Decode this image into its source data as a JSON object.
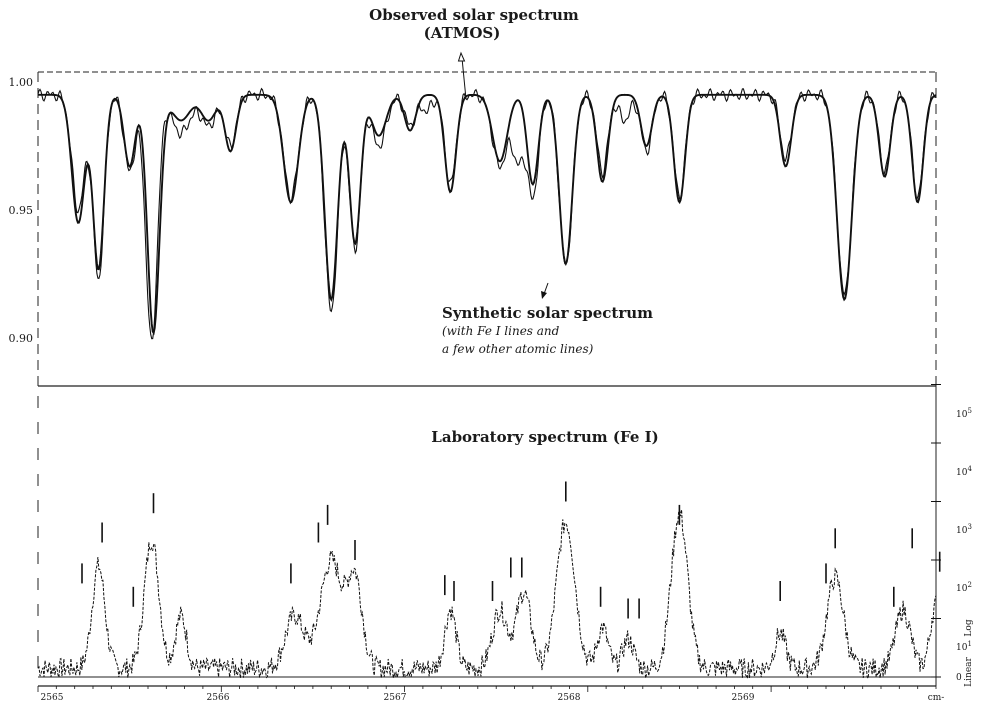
{
  "chart_data": [
    {
      "type": "line",
      "title": "",
      "xlabel": "",
      "ylabel": "",
      "xlim": [
        2565.0,
        2569.9
      ],
      "ylim": [
        0.88,
        1.005
      ],
      "y_ticks": [
        "1.00",
        "0.95",
        "0.90"
      ],
      "grid": false,
      "annotations": {
        "observed_title": "Observed solar spectrum",
        "observed_sub": "(ATMOS)",
        "synthetic_title": "Synthetic solar spectrum",
        "synthetic_line1": "(with Fe I lines and",
        "synthetic_line2": "a few other atomic lines)"
      },
      "continuum": 0.995,
      "series": [
        {
          "key": "observed",
          "lines": [
            {
              "x": 2565.22,
              "depth": 0.045,
              "width": 0.035
            },
            {
              "x": 2565.33,
              "depth": 0.072,
              "width": 0.03
            },
            {
              "x": 2565.5,
              "depth": 0.03,
              "width": 0.03
            },
            {
              "x": 2565.62,
              "depth": 0.097,
              "width": 0.032
            },
            {
              "x": 2565.78,
              "depth": 0.015,
              "width": 0.05
            },
            {
              "x": 2565.93,
              "depth": 0.012,
              "width": 0.04
            },
            {
              "x": 2566.05,
              "depth": 0.02,
              "width": 0.03
            },
            {
              "x": 2566.38,
              "depth": 0.04,
              "width": 0.04
            },
            {
              "x": 2566.6,
              "depth": 0.085,
              "width": 0.035
            },
            {
              "x": 2566.73,
              "depth": 0.06,
              "width": 0.03
            },
            {
              "x": 2566.86,
              "depth": 0.02,
              "width": 0.04
            },
            {
              "x": 2567.03,
              "depth": 0.012,
              "width": 0.03
            },
            {
              "x": 2567.12,
              "depth": 0.006,
              "width": 0.03
            },
            {
              "x": 2567.25,
              "depth": 0.035,
              "width": 0.03
            },
            {
              "x": 2567.52,
              "depth": 0.028,
              "width": 0.04
            },
            {
              "x": 2567.62,
              "depth": 0.025,
              "width": 0.03
            },
            {
              "x": 2567.7,
              "depth": 0.04,
              "width": 0.03
            },
            {
              "x": 2567.88,
              "depth": 0.067,
              "width": 0.035
            },
            {
              "x": 2568.08,
              "depth": 0.03,
              "width": 0.03
            },
            {
              "x": 2568.2,
              "depth": 0.01,
              "width": 0.03
            },
            {
              "x": 2568.32,
              "depth": 0.022,
              "width": 0.03
            },
            {
              "x": 2568.5,
              "depth": 0.04,
              "width": 0.03
            },
            {
              "x": 2569.08,
              "depth": 0.025,
              "width": 0.03
            },
            {
              "x": 2569.4,
              "depth": 0.078,
              "width": 0.04
            },
            {
              "x": 2569.62,
              "depth": 0.03,
              "width": 0.03
            },
            {
              "x": 2569.8,
              "depth": 0.04,
              "width": 0.03
            }
          ]
        },
        {
          "key": "synthetic",
          "lines": [
            {
              "x": 2565.22,
              "depth": 0.05,
              "width": 0.035
            },
            {
              "x": 2565.33,
              "depth": 0.068,
              "width": 0.03
            },
            {
              "x": 2565.5,
              "depth": 0.028,
              "width": 0.03
            },
            {
              "x": 2565.63,
              "depth": 0.093,
              "width": 0.033
            },
            {
              "x": 2565.78,
              "depth": 0.01,
              "width": 0.05
            },
            {
              "x": 2565.93,
              "depth": 0.01,
              "width": 0.04
            },
            {
              "x": 2566.05,
              "depth": 0.022,
              "width": 0.03
            },
            {
              "x": 2566.38,
              "depth": 0.042,
              "width": 0.04
            },
            {
              "x": 2566.6,
              "depth": 0.08,
              "width": 0.035
            },
            {
              "x": 2566.73,
              "depth": 0.058,
              "width": 0.03
            },
            {
              "x": 2566.86,
              "depth": 0.016,
              "width": 0.04
            },
            {
              "x": 2567.03,
              "depth": 0.014,
              "width": 0.03
            },
            {
              "x": 2567.25,
              "depth": 0.038,
              "width": 0.03
            },
            {
              "x": 2567.52,
              "depth": 0.026,
              "width": 0.04
            },
            {
              "x": 2567.7,
              "depth": 0.035,
              "width": 0.03
            },
            {
              "x": 2567.88,
              "depth": 0.066,
              "width": 0.035
            },
            {
              "x": 2568.08,
              "depth": 0.034,
              "width": 0.03
            },
            {
              "x": 2568.32,
              "depth": 0.02,
              "width": 0.03
            },
            {
              "x": 2568.5,
              "depth": 0.042,
              "width": 0.03
            },
            {
              "x": 2569.08,
              "depth": 0.028,
              "width": 0.03
            },
            {
              "x": 2569.4,
              "depth": 0.08,
              "width": 0.04
            },
            {
              "x": 2569.62,
              "depth": 0.032,
              "width": 0.03
            },
            {
              "x": 2569.8,
              "depth": 0.042,
              "width": 0.03
            }
          ]
        }
      ]
    },
    {
      "type": "line",
      "title": "Laboratory spectrum (Fe I)",
      "xlabel": "cm-",
      "ylabel": "Log",
      "ylabel2": "Linear",
      "xlim": [
        2565.0,
        2569.9
      ],
      "x_ticks": [
        "2565",
        "2566",
        "2567",
        "2568",
        "2569"
      ],
      "y_ticks_right": [
        {
          "label": "0",
          "value": 0
        },
        {
          "label": "10",
          "sup": "1",
          "value": 1
        },
        {
          "label": "10",
          "sup": "2",
          "value": 2
        },
        {
          "label": "10",
          "sup": "3",
          "value": 3
        },
        {
          "label": "10",
          "sup": "4",
          "value": 4
        },
        {
          "label": "10",
          "sup": "5",
          "value": 5
        }
      ],
      "ylim": [
        -0.2,
        5.3
      ],
      "peaks": [
        {
          "x": 2565.33,
          "height": 1.75,
          "width": 0.035
        },
        {
          "x": 2565.62,
          "height": 2.2,
          "width": 0.04
        },
        {
          "x": 2565.78,
          "height": 0.9,
          "width": 0.03
        },
        {
          "x": 2566.4,
          "height": 0.9,
          "width": 0.05
        },
        {
          "x": 2566.6,
          "height": 1.85,
          "width": 0.06
        },
        {
          "x": 2566.73,
          "height": 1.5,
          "width": 0.04
        },
        {
          "x": 2567.25,
          "height": 1.0,
          "width": 0.03
        },
        {
          "x": 2567.52,
          "height": 1.0,
          "width": 0.04
        },
        {
          "x": 2567.65,
          "height": 1.3,
          "width": 0.04
        },
        {
          "x": 2567.88,
          "height": 2.5,
          "width": 0.05
        },
        {
          "x": 2568.08,
          "height": 0.7,
          "width": 0.03
        },
        {
          "x": 2568.22,
          "height": 0.5,
          "width": 0.03
        },
        {
          "x": 2568.5,
          "height": 2.65,
          "width": 0.045
        },
        {
          "x": 2569.05,
          "height": 0.6,
          "width": 0.03
        },
        {
          "x": 2569.35,
          "height": 1.55,
          "width": 0.045
        },
        {
          "x": 2569.72,
          "height": 1.0,
          "width": 0.04
        },
        {
          "x": 2569.9,
          "height": 1.1,
          "width": 0.03
        }
      ],
      "line_markers": [
        {
          "x": 2565.24,
          "level": 1.6
        },
        {
          "x": 2565.35,
          "level": 2.3
        },
        {
          "x": 2565.52,
          "level": 1.2
        },
        {
          "x": 2565.63,
          "level": 2.8
        },
        {
          "x": 2566.38,
          "level": 1.6
        },
        {
          "x": 2566.53,
          "level": 2.3
        },
        {
          "x": 2566.58,
          "level": 2.6
        },
        {
          "x": 2566.73,
          "level": 2.0
        },
        {
          "x": 2567.22,
          "level": 1.4
        },
        {
          "x": 2567.27,
          "level": 1.3
        },
        {
          "x": 2567.48,
          "level": 1.3
        },
        {
          "x": 2567.58,
          "level": 1.7
        },
        {
          "x": 2567.64,
          "level": 1.7
        },
        {
          "x": 2567.88,
          "level": 3.0
        },
        {
          "x": 2568.07,
          "level": 1.2
        },
        {
          "x": 2568.22,
          "level": 1.0
        },
        {
          "x": 2568.28,
          "level": 1.0
        },
        {
          "x": 2568.5,
          "level": 2.6
        },
        {
          "x": 2569.05,
          "level": 1.3
        },
        {
          "x": 2569.3,
          "level": 1.6
        },
        {
          "x": 2569.35,
          "level": 2.2
        },
        {
          "x": 2569.67,
          "level": 1.2
        },
        {
          "x": 2569.77,
          "level": 2.2
        },
        {
          "x": 2569.92,
          "level": 1.8
        }
      ]
    }
  ]
}
